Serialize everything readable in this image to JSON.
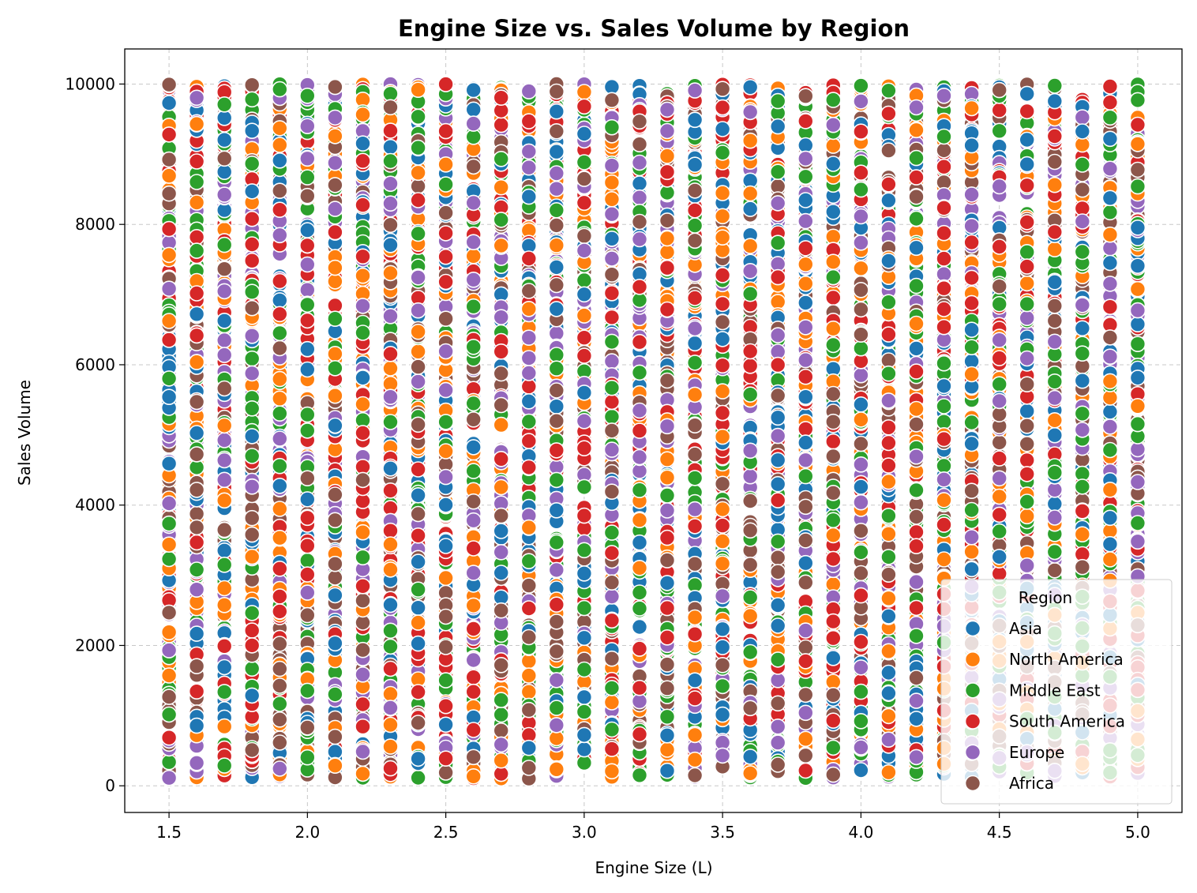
{
  "chart_data": {
    "type": "scatter",
    "title": "Engine Size vs. Sales Volume by Region",
    "xlabel": "Engine Size (L)",
    "ylabel": "Sales Volume",
    "xlim": [
      1.34,
      5.16
    ],
    "ylim": [
      -380,
      10500
    ],
    "x_ticks": [
      1.5,
      2.0,
      2.5,
      3.0,
      3.5,
      4.0,
      4.5,
      5.0
    ],
    "x_tick_labels": [
      "1.5",
      "2.0",
      "2.5",
      "3.0",
      "3.5",
      "4.0",
      "4.5",
      "5.0"
    ],
    "y_ticks": [
      0,
      2000,
      4000,
      6000,
      8000,
      10000
    ],
    "y_tick_labels": [
      "0",
      "2000",
      "4000",
      "6000",
      "8000",
      "10000"
    ],
    "grid": true,
    "legend_title": "Region",
    "legend_position": "lower-right",
    "x_values": [
      1.5,
      1.6,
      1.7,
      1.8,
      1.9,
      2.0,
      2.1,
      2.2,
      2.3,
      2.4,
      2.5,
      2.6,
      2.7,
      2.8,
      2.9,
      3.0,
      3.1,
      3.2,
      3.3,
      3.4,
      3.5,
      3.6,
      3.7,
      3.8,
      3.9,
      4.0,
      4.1,
      4.2,
      4.3,
      4.4,
      4.5,
      4.6,
      4.7,
      4.8,
      4.9,
      5.0
    ],
    "y_range": [
      100,
      10000
    ],
    "points_per_series_per_x": 40,
    "series": [
      {
        "name": "Asia",
        "color": "#1f77b4"
      },
      {
        "name": "North America",
        "color": "#ff7f0e"
      },
      {
        "name": "Middle East",
        "color": "#2ca02c"
      },
      {
        "name": "South America",
        "color": "#d62728"
      },
      {
        "name": "Europe",
        "color": "#9467bd"
      },
      {
        "name": "Africa",
        "color": "#8c564b"
      }
    ]
  }
}
